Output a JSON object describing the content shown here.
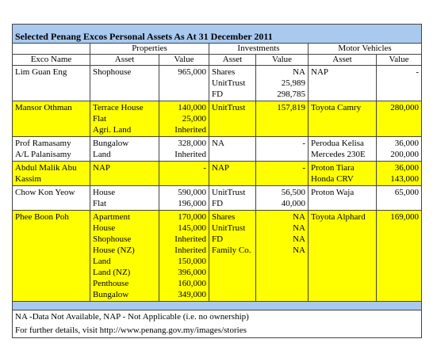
{
  "title": "Selected Penang Excos Personal Assets As At 31 December 2011",
  "groups": [
    "Properties",
    "Investments",
    "Motor Vehicles"
  ],
  "columns": [
    "Exco Name",
    "Asset",
    "Value",
    "Asset",
    "Value",
    "Asset",
    "Value"
  ],
  "rows": [
    [
      [
        "Lim Guan Eng"
      ],
      [
        "Shophouse"
      ],
      [
        "965,000"
      ],
      [
        "Shares",
        "UnitTrust",
        "FD"
      ],
      [
        "NA",
        "25,989",
        "298,785"
      ],
      [
        "NAP"
      ],
      [
        "-"
      ]
    ],
    [
      [
        "Mansor Othman"
      ],
      [
        "Terrace House",
        "Flat",
        "Agri. Land"
      ],
      [
        "140,000",
        "25,000",
        "Inherited"
      ],
      [
        "UnitTrust"
      ],
      [
        "157,819"
      ],
      [
        "Toyota Camry"
      ],
      [
        "280,000"
      ]
    ],
    [
      [
        "Prof Ramasamy",
        "A/L Palanisamy"
      ],
      [
        "Bungalow",
        "Land"
      ],
      [
        "328,000",
        "Inherited"
      ],
      [
        "NA"
      ],
      [
        "-"
      ],
      [
        "Perodua Kelisa",
        "Mercedes 230E"
      ],
      [
        "36,000",
        "200,000"
      ]
    ],
    [
      [
        "Abdul Malik Abu",
        "Kassim"
      ],
      [
        "NAP"
      ],
      [
        "-"
      ],
      [
        "NAP"
      ],
      [
        "-"
      ],
      [
        "Proton Tiara",
        "Honda CRV"
      ],
      [
        "36,000",
        "143,000"
      ]
    ],
    [
      [
        "Chow Kon Yeow"
      ],
      [
        "House",
        "Flat"
      ],
      [
        "590,000",
        "196,000"
      ],
      [
        "UnitTrust",
        "FD"
      ],
      [
        "56,500",
        "40,000"
      ],
      [
        "Proton Waja"
      ],
      [
        "65,000"
      ]
    ],
    [
      [
        "Phee Boon Poh"
      ],
      [
        "Apartment",
        "House",
        "Shophouse",
        "House (NZ)",
        "Land",
        "Land (NZ)",
        "Penthouse",
        "Bungalow"
      ],
      [
        "170,000",
        "145,000",
        "Inherited",
        "Inherited",
        "150,000",
        "396,000",
        "160,000",
        "349,000"
      ],
      [
        "Shares",
        "UnitTrust",
        "FD",
        "Family Co."
      ],
      [
        "NA",
        "NA",
        "NA",
        "NA"
      ],
      [
        "Toyota Alphard"
      ],
      [
        "169,000"
      ]
    ]
  ],
  "footer": [
    "NA -Data Not Available, NAP - Not Applicable (i.e. no ownership)",
    "For further details, visit http://www.penang.gov.my/images/stories"
  ]
}
